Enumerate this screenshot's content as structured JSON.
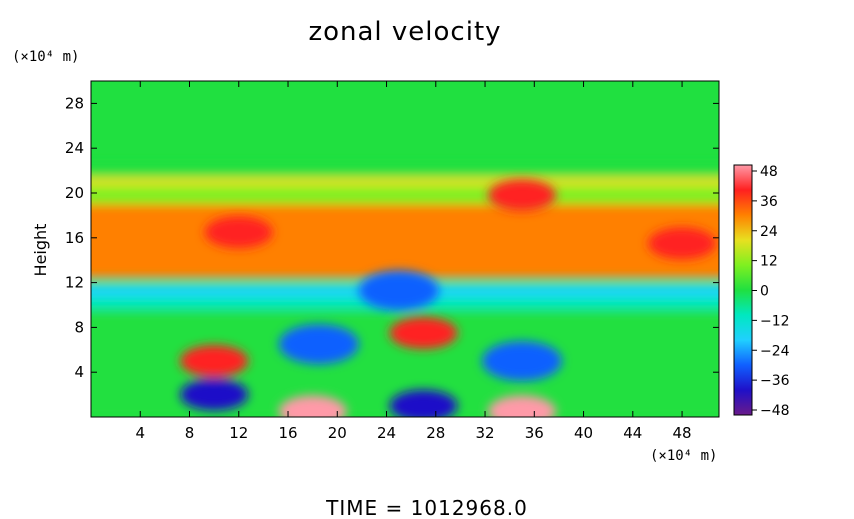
{
  "chart_data": {
    "type": "heatmap",
    "title": "zonal velocity",
    "ylabel": "Height",
    "y_unit": "(×10⁴ m)",
    "x_unit": "(×10⁴ m)",
    "xlim": [
      0,
      51
    ],
    "ylim": [
      0,
      30
    ],
    "x_ticks": [
      "4",
      "8",
      "12",
      "16",
      "20",
      "24",
      "28",
      "32",
      "36",
      "40",
      "44",
      "48"
    ],
    "y_ticks": [
      "4",
      "8",
      "12",
      "16",
      "20",
      "24",
      "28"
    ],
    "colorbar": {
      "ticks": [
        "48",
        "36",
        "24",
        "12",
        "0",
        "−12",
        "−24",
        "−36",
        "−48"
      ],
      "range": [
        -48,
        48
      ],
      "stops": [
        "#6a1a8a",
        "#1f10c8",
        "#1060ff",
        "#20d0ff",
        "#00e8c0",
        "#20e040",
        "#80f020",
        "#e8e020",
        "#ff8000",
        "#ff2020",
        "#ff9aa8"
      ]
    },
    "features": [
      {
        "x": 12,
        "y": 16.5,
        "value": 38
      },
      {
        "x": 35,
        "y": 19.8,
        "value": 40
      },
      {
        "x": 48,
        "y": 15.5,
        "value": 34
      },
      {
        "x": 27,
        "y": 7.5,
        "value": 34
      },
      {
        "x": 10,
        "y": 5,
        "value": 36
      },
      {
        "x": 18.5,
        "y": 6.5,
        "value": -26
      },
      {
        "x": 10,
        "y": 2,
        "value": -40
      },
      {
        "x": 27,
        "y": 1,
        "value": -40
      },
      {
        "x": 18,
        "y": 0.5,
        "value": 48
      },
      {
        "x": 35,
        "y": 0.5,
        "value": 44
      },
      {
        "x": 25,
        "y": 11.3,
        "value": -26
      },
      {
        "x": 35,
        "y": 5,
        "value": -30
      }
    ]
  },
  "footer": {
    "time_label": "TIME  =  1012968.0"
  }
}
